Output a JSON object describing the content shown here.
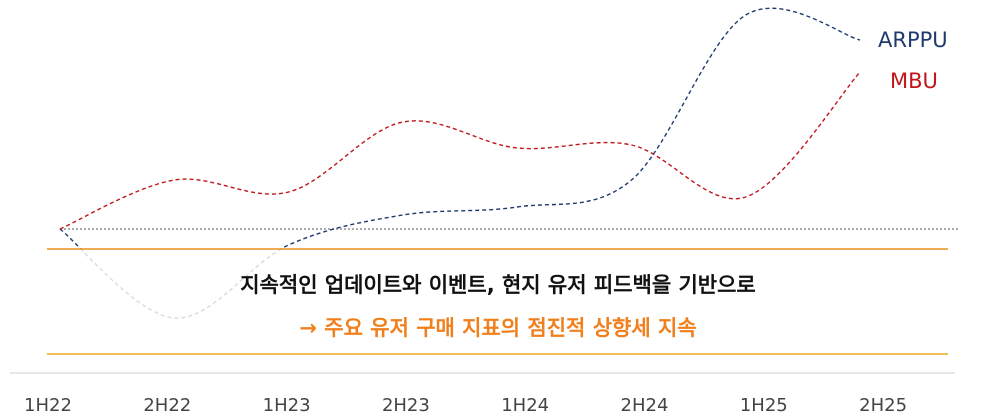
{
  "chart_data": {
    "type": "line",
    "categories": [
      "1H22",
      "2H22",
      "1H23",
      "2H23",
      "1H24",
      "2H24",
      "1H25",
      "2H25"
    ],
    "series": [
      {
        "name": "ARPPU",
        "color": "#1f3a6e",
        "values": [
          0,
          -89,
          -16,
          14,
          22,
          49,
          214,
          189
        ]
      },
      {
        "name": "MBU",
        "color": "#c0151b",
        "values": [
          0,
          49,
          37,
          107,
          81,
          84,
          32,
          157
        ]
      }
    ],
    "ylim": [
      -100,
      220
    ],
    "annotations": [
      "지속적인 업데이트와 이벤트, 현지 유저 피드백을 기반으로",
      "→ 주요 유저 구매 지표의 점진적 상향세 지속"
    ]
  }
}
